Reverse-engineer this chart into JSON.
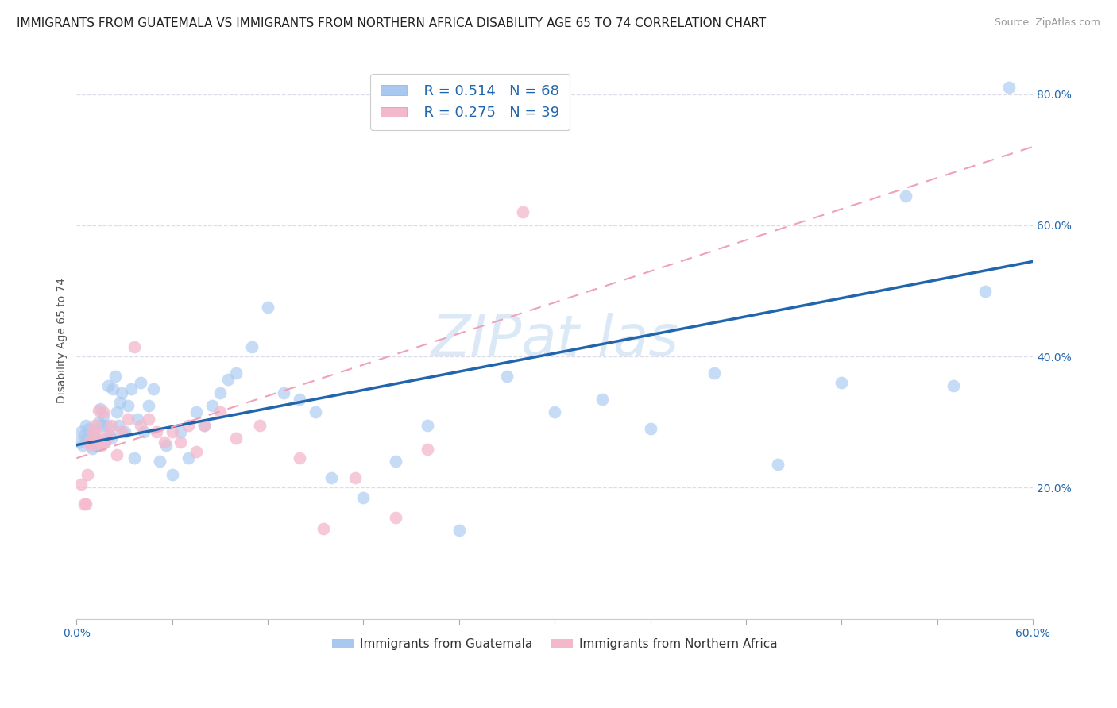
{
  "title": "IMMIGRANTS FROM GUATEMALA VS IMMIGRANTS FROM NORTHERN AFRICA DISABILITY AGE 65 TO 74 CORRELATION CHART",
  "source": "Source: ZipAtlas.com",
  "ylabel": "Disability Age 65 to 74",
  "xlim": [
    0.0,
    0.6
  ],
  "ylim": [
    0.0,
    0.85
  ],
  "x_minor_ticks": [
    0.0,
    0.06,
    0.12,
    0.18,
    0.24,
    0.3,
    0.36,
    0.42,
    0.48,
    0.54,
    0.6
  ],
  "yticks": [
    0.0,
    0.2,
    0.4,
    0.6,
    0.8
  ],
  "ytick_labels": [
    "",
    "20.0%",
    "40.0%",
    "60.0%",
    "80.0%"
  ],
  "R_blue": 0.514,
  "N_blue": 68,
  "R_pink": 0.275,
  "N_pink": 39,
  "blue_color": "#a8c8f0",
  "pink_color": "#f4b8cb",
  "blue_line_color": "#2166ac",
  "pink_line_color": "#e8507a",
  "pink_dash_color": "#f0a0b8",
  "tick_color": "#2166ac",
  "legend_text_color": "#2166ac",
  "background_color": "#ffffff",
  "grid_color": "#d8d8e8",
  "title_fontsize": 11,
  "axis_label_fontsize": 10,
  "tick_fontsize": 10,
  "watermark_color": "#cce0f5",
  "watermark_fontsize": 52,
  "blue_scatter_x": [
    0.002,
    0.003,
    0.004,
    0.005,
    0.006,
    0.007,
    0.008,
    0.009,
    0.01,
    0.011,
    0.012,
    0.013,
    0.014,
    0.015,
    0.016,
    0.017,
    0.018,
    0.019,
    0.02,
    0.021,
    0.022,
    0.023,
    0.024,
    0.025,
    0.026,
    0.027,
    0.028,
    0.03,
    0.032,
    0.034,
    0.036,
    0.038,
    0.04,
    0.042,
    0.045,
    0.048,
    0.052,
    0.056,
    0.06,
    0.065,
    0.07,
    0.075,
    0.08,
    0.085,
    0.09,
    0.095,
    0.1,
    0.11,
    0.12,
    0.13,
    0.14,
    0.15,
    0.16,
    0.18,
    0.2,
    0.22,
    0.24,
    0.27,
    0.3,
    0.33,
    0.36,
    0.4,
    0.44,
    0.48,
    0.52,
    0.55,
    0.57,
    0.585
  ],
  "blue_scatter_y": [
    0.27,
    0.285,
    0.265,
    0.28,
    0.295,
    0.275,
    0.29,
    0.268,
    0.26,
    0.285,
    0.275,
    0.265,
    0.3,
    0.32,
    0.295,
    0.31,
    0.27,
    0.295,
    0.355,
    0.28,
    0.275,
    0.35,
    0.37,
    0.315,
    0.295,
    0.33,
    0.345,
    0.285,
    0.325,
    0.35,
    0.245,
    0.305,
    0.36,
    0.285,
    0.325,
    0.35,
    0.24,
    0.265,
    0.22,
    0.285,
    0.245,
    0.315,
    0.295,
    0.325,
    0.345,
    0.365,
    0.375,
    0.415,
    0.475,
    0.345,
    0.335,
    0.315,
    0.215,
    0.185,
    0.24,
    0.295,
    0.135,
    0.37,
    0.315,
    0.335,
    0.29,
    0.375,
    0.235,
    0.36,
    0.645,
    0.355,
    0.5,
    0.81
  ],
  "pink_scatter_x": [
    0.003,
    0.005,
    0.006,
    0.007,
    0.008,
    0.009,
    0.01,
    0.011,
    0.012,
    0.013,
    0.014,
    0.015,
    0.016,
    0.017,
    0.018,
    0.02,
    0.022,
    0.025,
    0.028,
    0.032,
    0.036,
    0.04,
    0.045,
    0.05,
    0.055,
    0.06,
    0.065,
    0.07,
    0.075,
    0.08,
    0.09,
    0.1,
    0.115,
    0.14,
    0.155,
    0.175,
    0.2,
    0.22,
    0.28
  ],
  "pink_scatter_y": [
    0.205,
    0.175,
    0.175,
    0.22,
    0.27,
    0.265,
    0.285,
    0.27,
    0.295,
    0.28,
    0.318,
    0.27,
    0.265,
    0.315,
    0.27,
    0.28,
    0.295,
    0.25,
    0.285,
    0.305,
    0.415,
    0.295,
    0.305,
    0.285,
    0.27,
    0.285,
    0.27,
    0.295,
    0.255,
    0.295,
    0.315,
    0.275,
    0.295,
    0.245,
    0.138,
    0.215,
    0.155,
    0.258,
    0.62
  ],
  "blue_line_x0": 0.0,
  "blue_line_x1": 0.6,
  "blue_line_y0": 0.265,
  "blue_line_y1": 0.545,
  "pink_line_x0": 0.0,
  "pink_line_x1": 0.6,
  "pink_line_y0": 0.245,
  "pink_line_y1": 0.72
}
